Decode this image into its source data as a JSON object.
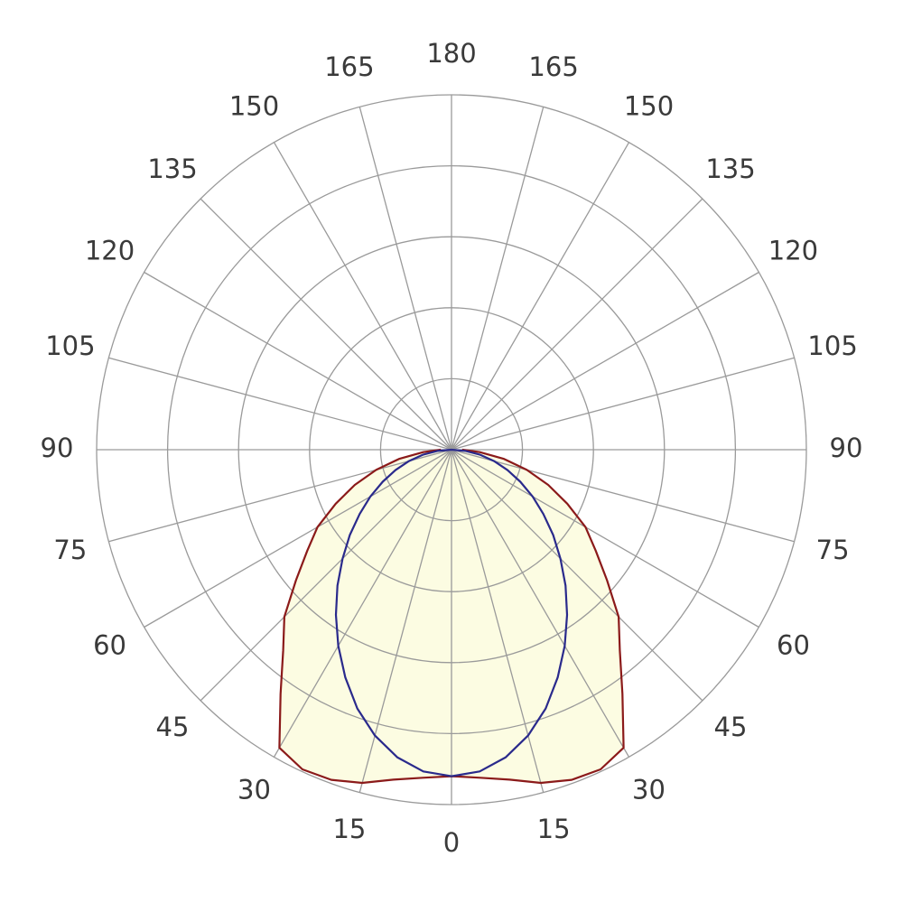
{
  "chart_data": {
    "type": "polar",
    "rlim": [
      0,
      5
    ],
    "rgrid": [
      1,
      2,
      3,
      4,
      5
    ],
    "grid_color": "#9a9a9a",
    "thetaticks": [
      {
        "value": -165,
        "label": "165"
      },
      {
        "value": -150,
        "label": "150"
      },
      {
        "value": -135,
        "label": "135"
      },
      {
        "value": -120,
        "label": "120"
      },
      {
        "value": -105,
        "label": "105"
      },
      {
        "value": -90,
        "label": "90"
      },
      {
        "value": -75,
        "label": "75"
      },
      {
        "value": -60,
        "label": "60"
      },
      {
        "value": -45,
        "label": "45"
      },
      {
        "value": -30,
        "label": "30"
      },
      {
        "value": -15,
        "label": "15"
      },
      0,
      15,
      30,
      45,
      60,
      75,
      90,
      105,
      120,
      135,
      150,
      165,
      180
    ],
    "theta": [
      -90,
      -85,
      -80,
      -75,
      -70,
      -65,
      -60,
      -55,
      -50,
      -45,
      -40,
      -35,
      -30,
      -25,
      -20,
      -15,
      -10,
      -5,
      0,
      5,
      10,
      15,
      20,
      25,
      30,
      35,
      40,
      45,
      50,
      55,
      60,
      65,
      70,
      75,
      80,
      85,
      90
    ],
    "series": [
      {
        "color": "#8b1a1a",
        "fill": "#fcfce2",
        "values": [
          0.15,
          0.4,
          0.75,
          1.1,
          1.45,
          1.8,
          2.18,
          2.48,
          2.86,
          3.33,
          3.69,
          4.2,
          4.85,
          4.97,
          4.95,
          4.86,
          4.72,
          4.64,
          4.6,
          4.64,
          4.72,
          4.86,
          4.95,
          4.97,
          4.85,
          4.2,
          3.69,
          3.33,
          2.86,
          2.48,
          2.18,
          1.8,
          1.45,
          1.1,
          0.75,
          0.4,
          0.15
        ]
      },
      {
        "color": "#2a2a8c",
        "values": [
          0,
          0.2,
          0.41,
          0.62,
          0.84,
          1.07,
          1.32,
          1.58,
          1.87,
          2.17,
          2.5,
          2.84,
          3.19,
          3.54,
          3.88,
          4.17,
          4.4,
          4.55,
          4.6,
          4.55,
          4.4,
          4.17,
          3.88,
          3.54,
          3.19,
          2.84,
          2.5,
          2.17,
          1.87,
          1.58,
          1.32,
          1.07,
          0.84,
          0.62,
          0.41,
          0.2,
          0
        ]
      }
    ]
  }
}
